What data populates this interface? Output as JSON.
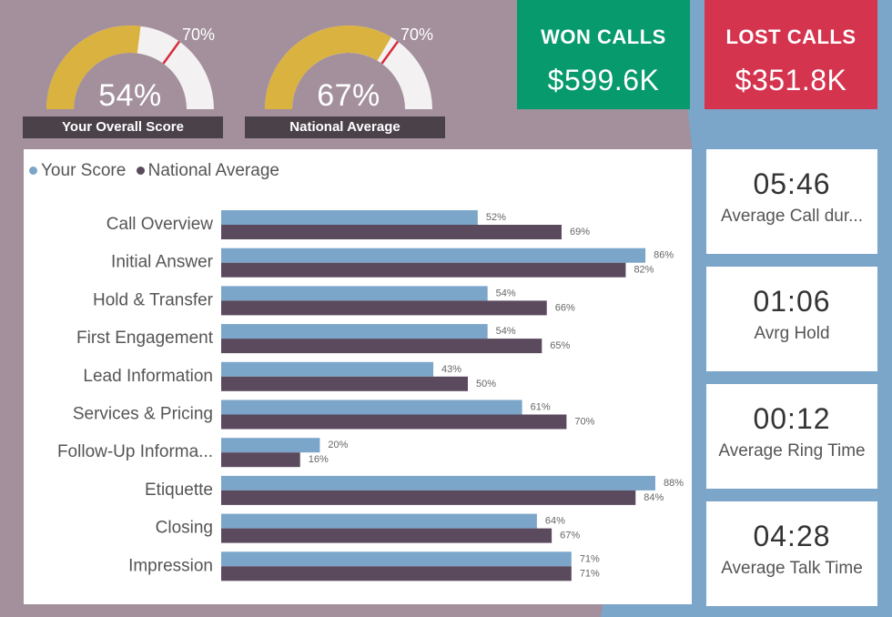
{
  "gauges": [
    {
      "score": 54,
      "score_label": "54%",
      "target": 70,
      "target_label": "70%",
      "label": "Your Overall Score"
    },
    {
      "score": 67,
      "score_label": "67%",
      "target": 70,
      "target_label": "70%",
      "label": "National Average"
    }
  ],
  "kpis": {
    "won": {
      "title": "WON CALLS",
      "value": "$599.6K",
      "color": "#079a6c"
    },
    "lost": {
      "title": "LOST CALLS",
      "value": "$351.8K",
      "color": "#d5344f"
    }
  },
  "stats": [
    {
      "value": "05:46",
      "label": "Average Call dur..."
    },
    {
      "value": "01:06",
      "label": "Avrg Hold"
    },
    {
      "value": "00:12",
      "label": "Average Ring Time"
    },
    {
      "value": "04:28",
      "label": "Average Talk Time"
    }
  ],
  "colors": {
    "background": "#a3909c",
    "accent_blue": "#7ba5c9",
    "gauge_fill": "#d9b23f",
    "gauge_empty": "#f3f1f1",
    "gauge_target": "#d42c3c",
    "your_score": "#7ba5c9",
    "national_average": "#5b4a5e"
  },
  "chart_data": {
    "type": "bar",
    "orientation": "horizontal",
    "categories": [
      "Call Overview",
      "Initial Answer",
      "Hold & Transfer",
      "First Engagement",
      "Lead Information",
      "Services & Pricing",
      "Follow-Up Informa...",
      "Etiquette",
      "Closing",
      "Impression"
    ],
    "series": [
      {
        "name": "Your Score",
        "values": [
          52,
          86,
          54,
          54,
          43,
          61,
          20,
          88,
          64,
          71
        ],
        "labels": [
          "52%",
          "86%",
          "54%",
          "54%",
          "43%",
          "61%",
          "20%",
          "88%",
          "64%",
          "71%"
        ]
      },
      {
        "name": "National Average",
        "values": [
          69,
          82,
          66,
          65,
          50,
          70,
          16,
          84,
          67,
          71
        ],
        "labels": [
          "69%",
          "82%",
          "66%",
          "65%",
          "50%",
          "70%",
          "16%",
          "84%",
          "67%",
          "71%"
        ]
      }
    ],
    "xlim": [
      0,
      100
    ],
    "legend": "top-left",
    "grid": false
  }
}
